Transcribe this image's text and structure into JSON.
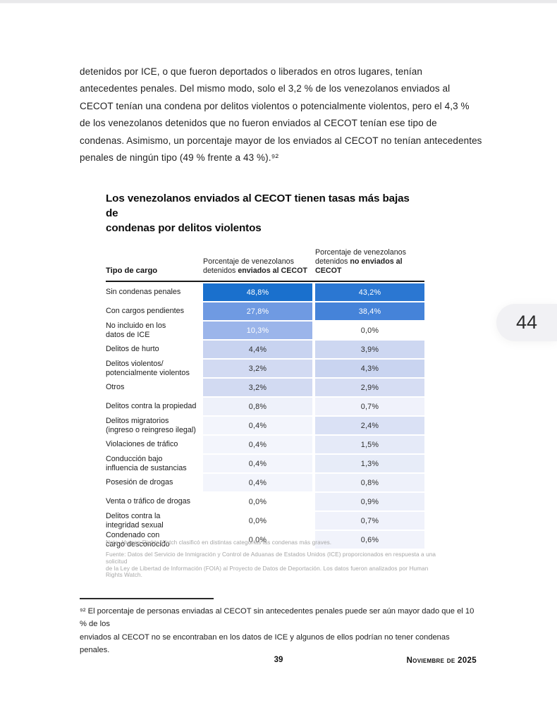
{
  "document": {
    "paragraph": "detenidos por ICE, o que fueron deportados o liberados en otros lugares, tenían\nantecedentes penales. Del mismo modo, solo el 3,2 % de los venezolanos enviados al\nCECOT tenían una condena por delitos violentos o potencialmente violentos, pero el 4,3 %\nde los venezolanos detenidos que no fueron enviados al CECOT tenían ese tipo de\ncondenas. Asimismo, un porcentaje mayor de los enviados al CECOT no tenían antecedentes\npenales de ningún tipo (49 % frente a 43 %).⁹²",
    "footnote": "⁹² El porcentaje de personas enviadas al CECOT sin antecedentes penales puede ser aún mayor dado que el 10 % de los\nenviados al CECOT no se encontraban en los datos de ICE y algunos de ellos podrían no tener condenas penales.",
    "page_number": "39",
    "issue_date": "Noviembre de 2025"
  },
  "viewer": {
    "page_badge": "44"
  },
  "figure": {
    "title": "Los venezolanos enviados al CECOT tienen tasas más bajas de\ncondenas por delitos violentos",
    "header": {
      "charge_type": "Tipo de cargo",
      "col_cecot": {
        "line1": "Porcentaje de venezolanos",
        "prefix": "detenidos ",
        "bold": "enviados al CECOT"
      },
      "col_no_cecot": {
        "line1": "Porcentaje de venezolanos",
        "prefix": "detenidos ",
        "bold": "no enviados al CECOT"
      }
    },
    "note": "Nota: Human Rights Watch clasificó en distintas categorías las condenas más graves.",
    "source": "Fuente: Datos del Servicio de Inmigración y Control de Aduanas de Estados Unidos (ICE) proporcionados en respuesta a una solicitud\nde la Ley de Libertad de Información (FOIA) al Proyecto de Datos de Deportación. Los datos fueron analizados por Human Rights Watch."
  },
  "chart_data": {
    "type": "table",
    "title": "Los venezolanos enviados al CECOT tienen tasas más bajas de condenas por delitos violentos",
    "columns": [
      "Tipo de cargo",
      "Porcentaje de venezolanos detenidos enviados al CECOT",
      "Porcentaje de venezolanos detenidos no enviados al CECOT"
    ],
    "value_format": "comma-decimal percent",
    "heatmap_accent": "#1a70cd",
    "rows": [
      {
        "label": "Sin condenas penales",
        "cecot": "48,8%",
        "no_cecot": "43,2%",
        "cecot_value": 48.8,
        "no_cecot_value": 43.2,
        "cecot_bg": "#1a70cd",
        "no_cecot_bg": "#2b77d2",
        "cecot_fg": "#ffffff",
        "no_cecot_fg": "#ffffff"
      },
      {
        "label": "Con cargos pendientes",
        "cecot": "27,8%",
        "no_cecot": "38,4%",
        "cecot_value": 27.8,
        "no_cecot_value": 38.4,
        "cecot_bg": "#6f9ae2",
        "no_cecot_bg": "#4583d9",
        "cecot_fg": "#ffffff",
        "no_cecot_fg": "#ffffff"
      },
      {
        "label": "No incluido en los\ndatos de ICE",
        "cecot": "10,3%",
        "no_cecot": "0,0%",
        "cecot_value": 10.3,
        "no_cecot_value": 0.0,
        "cecot_bg": "#9bb5ea",
        "no_cecot_bg": "#ffffff",
        "cecot_fg": "#ffffff",
        "no_cecot_fg": "#2e2e2e"
      },
      {
        "label": "Delitos de hurto",
        "cecot": "4,4%",
        "no_cecot": "3,9%",
        "cecot_value": 4.4,
        "no_cecot_value": 3.9,
        "cecot_bg": "#c8d3f0",
        "no_cecot_bg": "#cdd7f1",
        "cecot_fg": "#2e2e2e",
        "no_cecot_fg": "#2e2e2e"
      },
      {
        "label": "Delitos violentos/\npotencialmente violentos",
        "cecot": "3,2%",
        "no_cecot": "4,3%",
        "cecot_value": 3.2,
        "no_cecot_value": 4.3,
        "cecot_bg": "#d2daf2",
        "no_cecot_bg": "#c9d4f0",
        "cecot_fg": "#2e2e2e",
        "no_cecot_fg": "#2e2e2e"
      },
      {
        "label": "Otros",
        "cecot": "3,2%",
        "no_cecot": "2,9%",
        "cecot_value": 3.2,
        "no_cecot_value": 2.9,
        "cecot_bg": "#d2daf2",
        "no_cecot_bg": "#d6ddf3",
        "cecot_fg": "#2e2e2e",
        "no_cecot_fg": "#2e2e2e"
      },
      {
        "label": "Delitos contra la propiedad",
        "cecot": "0,8%",
        "no_cecot": "0,7%",
        "cecot_value": 0.8,
        "no_cecot_value": 0.7,
        "cecot_bg": "#eef1fa",
        "no_cecot_bg": "#f0f2fb",
        "cecot_fg": "#2e2e2e",
        "no_cecot_fg": "#2e2e2e"
      },
      {
        "label": "Delitos migratorios\n(ingreso o reingreso ilegal)",
        "cecot": "0,4%",
        "no_cecot": "2,4%",
        "cecot_value": 0.4,
        "no_cecot_value": 2.4,
        "cecot_bg": "#f3f5fc",
        "no_cecot_bg": "#dae1f5",
        "cecot_fg": "#2e2e2e",
        "no_cecot_fg": "#2e2e2e"
      },
      {
        "label": "Violaciones de tráfico",
        "cecot": "0,4%",
        "no_cecot": "1,5%",
        "cecot_value": 0.4,
        "no_cecot_value": 1.5,
        "cecot_bg": "#f3f5fc",
        "no_cecot_bg": "#e5eaf8",
        "cecot_fg": "#2e2e2e",
        "no_cecot_fg": "#2e2e2e"
      },
      {
        "label": "Conducción bajo\ninfluencia de sustancias",
        "cecot": "0,4%",
        "no_cecot": "1,3%",
        "cecot_value": 0.4,
        "no_cecot_value": 1.3,
        "cecot_bg": "#f3f5fc",
        "no_cecot_bg": "#e7ecf8",
        "cecot_fg": "#2e2e2e",
        "no_cecot_fg": "#2e2e2e"
      },
      {
        "label": "Posesión de drogas",
        "cecot": "0,4%",
        "no_cecot": "0,8%",
        "cecot_value": 0.4,
        "no_cecot_value": 0.8,
        "cecot_bg": "#f3f5fc",
        "no_cecot_bg": "#eef1fa",
        "cecot_fg": "#2e2e2e",
        "no_cecot_fg": "#2e2e2e"
      },
      {
        "label": "Venta o tráfico de drogas",
        "cecot": "0,0%",
        "no_cecot": "0,9%",
        "cecot_value": 0.0,
        "no_cecot_value": 0.9,
        "cecot_bg": "#ffffff",
        "no_cecot_bg": "#edf0fa",
        "cecot_fg": "#2e2e2e",
        "no_cecot_fg": "#2e2e2e"
      },
      {
        "label": "Delitos contra la\nintegridad sexual",
        "cecot": "0,0%",
        "no_cecot": "0,7%",
        "cecot_value": 0.0,
        "no_cecot_value": 0.7,
        "cecot_bg": "#ffffff",
        "no_cecot_bg": "#f0f2fb",
        "cecot_fg": "#2e2e2e",
        "no_cecot_fg": "#2e2e2e"
      },
      {
        "label": "Condenado con\ncargo desconocido",
        "cecot": "0,0%",
        "no_cecot": "0,6%",
        "cecot_value": 0.0,
        "no_cecot_value": 0.6,
        "cecot_bg": "#ffffff",
        "no_cecot_bg": "#f1f3fb",
        "cecot_fg": "#2e2e2e",
        "no_cecot_fg": "#2e2e2e"
      }
    ]
  }
}
